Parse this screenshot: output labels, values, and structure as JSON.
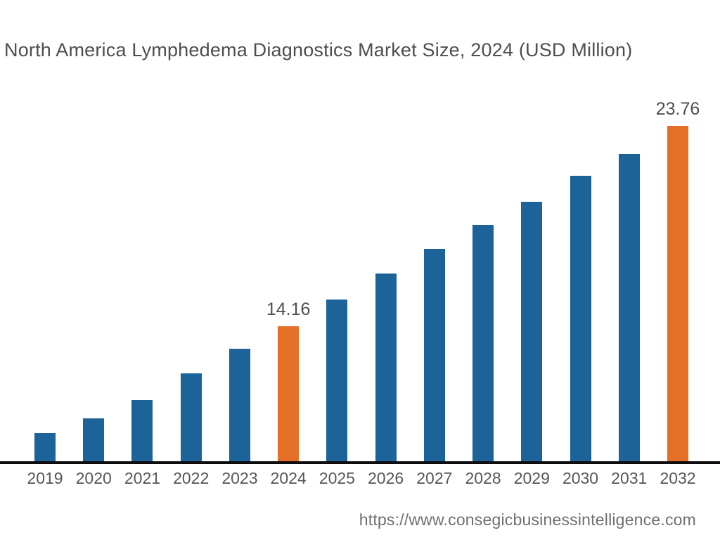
{
  "title": "North America Lymphedema Diagnostics Market Size, 2024 (USD Million)",
  "footer": {
    "url": "https://www.consegicbusinessintelligence.com"
  },
  "colors": {
    "bar_default": "#1c6399",
    "bar_highlight": "#e56f26",
    "axis": "#0d0d0d",
    "title_text": "#4d4e50",
    "tick_text": "#565759",
    "data_label_text": "#4d4e50",
    "url_text": "#6e6f72",
    "background": "#ffffff"
  },
  "chart_data": {
    "type": "bar",
    "title": "North America Lymphedema Diagnostics Market Size, 2024 (USD Million)",
    "xlabel": "",
    "ylabel": "USD Million",
    "categories": [
      "2019",
      "2020",
      "2021",
      "2022",
      "2023",
      "2024",
      "2025",
      "2026",
      "2027",
      "2028",
      "2029",
      "2030",
      "2031",
      "2032"
    ],
    "values": [
      9.04,
      9.75,
      10.62,
      11.9,
      13.08,
      14.16,
      15.44,
      16.69,
      17.86,
      19.01,
      20.11,
      21.37,
      22.41,
      23.76
    ],
    "labeled_points": [
      {
        "category": "2024",
        "label": "14.16",
        "value": 14.16
      },
      {
        "category": "2032",
        "label": "23.76",
        "value": 23.76
      }
    ],
    "highlighted_categories": [
      "2024",
      "2032"
    ],
    "ylim": [
      7.69,
      23.76
    ],
    "y_axis_visible": false,
    "grid": false,
    "legend": false
  }
}
